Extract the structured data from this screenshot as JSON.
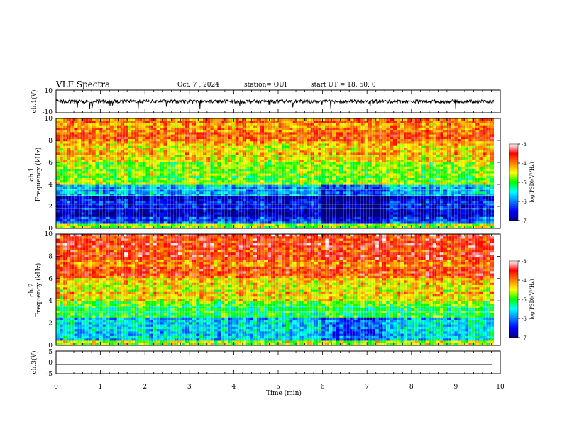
{
  "header": {
    "title": "VLF Spectra",
    "date": "Oct. 7 , 2024",
    "station": "station= OUI",
    "start": "start UT =  18: 50: 0"
  },
  "chart_data": [
    {
      "type": "line",
      "panel": "ch1-waveform",
      "ylabel": "ch.1(V)",
      "ylim": [
        -10,
        10
      ],
      "yticks": [
        "10",
        "-10"
      ],
      "xlim": [
        0,
        10
      ],
      "series": [
        {
          "values_description": "noisy waveform",
          "baseline": 0,
          "approx_amplitude": 1.5
        }
      ]
    },
    {
      "type": "heatmap",
      "panel": "ch1-spectrogram",
      "ylabel": "ch.1\nFrequency (kHz)",
      "ylim": [
        0,
        10
      ],
      "yticks": [
        "0",
        "2",
        "4",
        "6",
        "8",
        "10"
      ],
      "xlim": [
        0,
        9.85
      ],
      "colorbar": {
        "label": "log(PSD)(V²/Hz)",
        "range": [
          -7,
          -3
        ],
        "ticks": [
          "-3",
          "-4",
          "-5",
          "-6",
          "-7"
        ]
      },
      "bands_kHz_log": [
        [
          0,
          0.4,
          -4.6
        ],
        [
          0.4,
          1.0,
          -6.2
        ],
        [
          1.0,
          3.0,
          -6.6
        ],
        [
          3.0,
          4.0,
          -5.8
        ],
        [
          4.0,
          6.0,
          -4.8
        ],
        [
          6.0,
          8.0,
          -4.3
        ],
        [
          8.0,
          10.0,
          -4.0
        ]
      ]
    },
    {
      "type": "heatmap",
      "panel": "ch2-spectrogram",
      "ylabel": "ch.2\nFrequency (kHz)",
      "ylim": [
        0,
        10
      ],
      "yticks": [
        "0",
        "2",
        "4",
        "6",
        "8",
        "10"
      ],
      "xlim": [
        0,
        9.85
      ],
      "colorbar": {
        "label": "log(PSD)(V²/Hz)",
        "range": [
          -7,
          -3
        ],
        "ticks": [
          "-3",
          "-4",
          "-5",
          "-6",
          "-7"
        ]
      },
      "bands_kHz_log": [
        [
          0,
          0.5,
          -4.8
        ],
        [
          0.5,
          2.5,
          -5.6
        ],
        [
          2.5,
          4.0,
          -5.0
        ],
        [
          4.0,
          6.0,
          -4.4
        ],
        [
          6.0,
          8.0,
          -3.9
        ],
        [
          8.0,
          10.0,
          -3.6
        ]
      ]
    },
    {
      "type": "line",
      "panel": "ch3-waveform",
      "ylabel": "ch.3(V)",
      "ylim": [
        -5,
        5
      ],
      "yticks": [
        "5",
        "0",
        "-5"
      ],
      "xlim": [
        0,
        10
      ],
      "series": [
        {
          "values_description": "flat line",
          "baseline": -1
        }
      ]
    }
  ],
  "xaxis": {
    "label": "Time (min)",
    "ticks": [
      "0",
      "1",
      "2",
      "3",
      "4",
      "5",
      "6",
      "7",
      "8",
      "9",
      "10"
    ]
  }
}
